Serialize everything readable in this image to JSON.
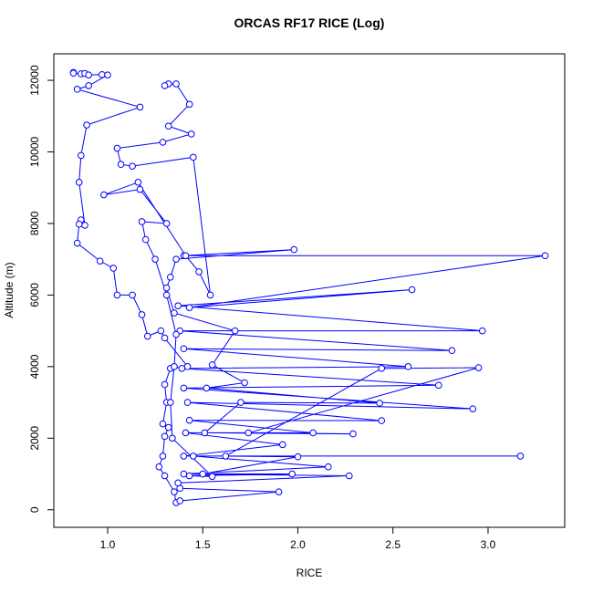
{
  "chart_data": {
    "type": "line",
    "title": "ORCAS RF17 RICE (Log)",
    "x_label": "RICE",
    "y_label": "Altitude (m)",
    "xlim": [
      0.717,
      3.403
    ],
    "ylim": [
      -490,
      12740
    ],
    "xticks": [
      {
        "value": 1,
        "label": "1.0"
      },
      1.5,
      {
        "value": 2,
        "label": "2.0"
      },
      2.5,
      {
        "value": 3,
        "label": "3.0"
      }
    ],
    "yticks": [
      0,
      2000,
      4000,
      6000,
      8000,
      10000,
      12000
    ],
    "series": [
      {
        "color": "#0000ff",
        "x": [
          0.82,
          0.82,
          0.86,
          0.88,
          0.9,
          0.97,
          1.0,
          0.9,
          0.84,
          1.17,
          0.89,
          0.86,
          0.85,
          0.88,
          0.86,
          0.85,
          0.84,
          0.96,
          1.03,
          1.05,
          1.13,
          1.18,
          1.21,
          1.28,
          1.3,
          1.42,
          1.33,
          1.3,
          1.31,
          1.29,
          1.32,
          1.3,
          1.29,
          1.27,
          1.3,
          1.35,
          1.36,
          1.38,
          1.9,
          1.38,
          1.37,
          2.27,
          1.4,
          2.16,
          1.45,
          3.17,
          1.4,
          1.92,
          1.41,
          2.08,
          1.43,
          2.44,
          1.42,
          2.92,
          1.4,
          2.74,
          1.39,
          2.58,
          1.4,
          2.81,
          1.38,
          2.97,
          1.37,
          2.6,
          1.43,
          3.3,
          1.4,
          1.98,
          1.36,
          1.33,
          1.31,
          1.35,
          1.67,
          1.55,
          1.72,
          1.52,
          2.43,
          1.7,
          1.51,
          2.29,
          1.74,
          2.95,
          2.44,
          1.62,
          2.0,
          1.5,
          1.97,
          1.43,
          1.55,
          1.34,
          1.33,
          1.35,
          1.36,
          1.31,
          1.25,
          1.2,
          1.18,
          1.31,
          1.17,
          0.98,
          1.16,
          1.41,
          1.48,
          1.54,
          1.45,
          1.13,
          1.07,
          1.05,
          1.29,
          1.44,
          1.32,
          1.43,
          1.36,
          1.32,
          1.3
        ],
        "values": [
          12220,
          12200,
          12180,
          12190,
          12150,
          12160,
          12150,
          11850,
          11750,
          11250,
          10750,
          9900,
          9150,
          7950,
          8100,
          7980,
          7450,
          6950,
          6750,
          6000,
          6000,
          5450,
          4850,
          5000,
          4800,
          4000,
          3950,
          3500,
          3000,
          2400,
          2300,
          2050,
          1500,
          1200,
          950,
          500,
          200,
          250,
          500,
          600,
          750,
          950,
          1000,
          1200,
          1500,
          1500,
          1500,
          1820,
          2150,
          2150,
          2500,
          2490,
          3000,
          2820,
          3400,
          3480,
          3950,
          4000,
          4500,
          4450,
          5000,
          5000,
          5700,
          6150,
          5650,
          7100,
          7100,
          7270,
          7000,
          6500,
          6200,
          5500,
          5000,
          4050,
          3550,
          3400,
          2980,
          3000,
          2150,
          2120,
          2150,
          3970,
          3950,
          1500,
          1480,
          1000,
          1000,
          950,
          930,
          2000,
          3000,
          4000,
          4900,
          6000,
          7000,
          7550,
          8050,
          8000,
          8950,
          8800,
          9150,
          7100,
          6650,
          6000,
          9850,
          9600,
          9650,
          10100,
          10270,
          10500,
          10720,
          11330,
          11900,
          11900,
          11850
        ]
      }
    ]
  }
}
